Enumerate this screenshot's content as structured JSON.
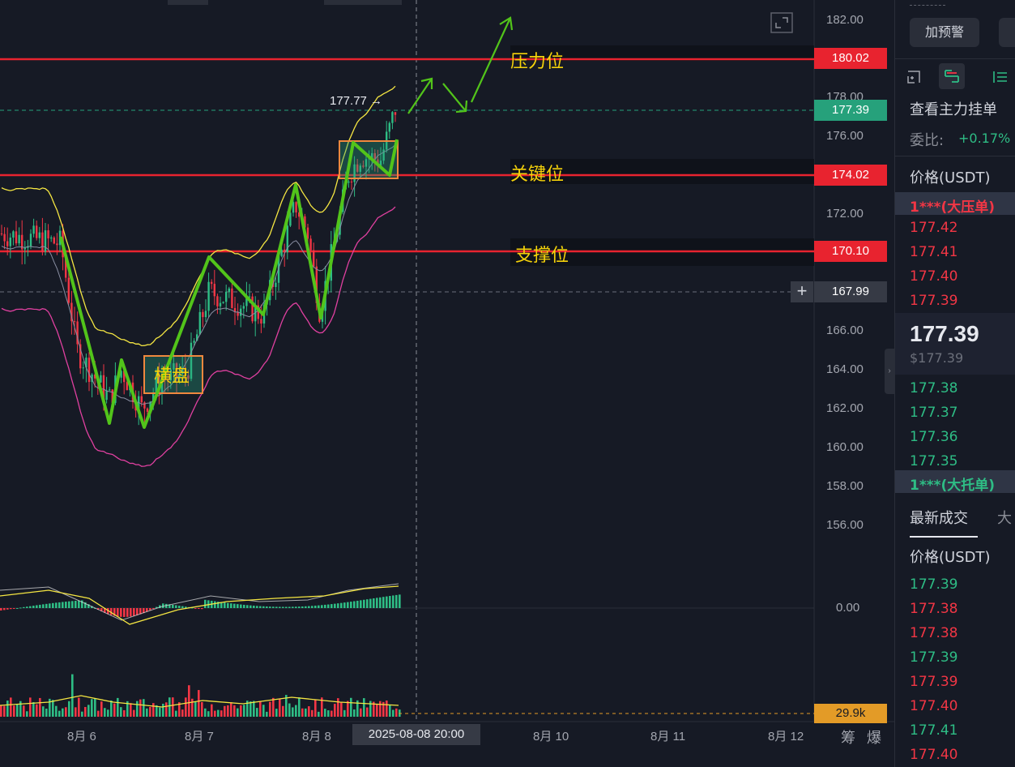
{
  "price_axis": {
    "labels": [
      "182.00",
      "178.00",
      "176.00",
      "172.00",
      "166.00",
      "164.00",
      "162.00",
      "160.00",
      "158.00",
      "156.00",
      "0.00"
    ]
  },
  "price_tags": {
    "pressure": "180.02",
    "current": "177.39",
    "key": "174.02",
    "support": "170.10",
    "crosshair": "167.99",
    "volume": "29.9k"
  },
  "high_marker": "177.77 →",
  "zones": {
    "pressure_label": "压力位",
    "key_label": "关键位",
    "support_label": "支撑位",
    "consolidation_label": "横盘"
  },
  "date_axis": {
    "labels": [
      "8月 6",
      "8月 7",
      "8月 8",
      "8月 10",
      "8月 11",
      "8月 12"
    ],
    "crosshair_time": "2025-08-08 20:00",
    "tools": [
      "筹",
      "爆"
    ]
  },
  "panel": {
    "alert_button": "加预警",
    "order_view_title": "查看主力挂单",
    "ratio_label": "委比:",
    "ratio_value": "+0.17%",
    "price_header": "价格(USDT)",
    "ask_big": "1***(大压单)",
    "asks": [
      "177.42",
      "177.41",
      "177.40",
      "177.39"
    ],
    "last_price": "177.39",
    "last_price_usd": "$177.39",
    "bids": [
      "177.38",
      "177.37",
      "177.36",
      "177.35"
    ],
    "bid_big": "1***(大托单)",
    "trades_tab": "最新成交",
    "trades_tab2": "大",
    "trades_header": "价格(USDT)",
    "trades": [
      {
        "p": "177.39",
        "side": "buy"
      },
      {
        "p": "177.38",
        "side": "sell"
      },
      {
        "p": "177.38",
        "side": "sell"
      },
      {
        "p": "177.39",
        "side": "buy"
      },
      {
        "p": "177.39",
        "side": "sell"
      },
      {
        "p": "177.40",
        "side": "sell"
      },
      {
        "p": "177.41",
        "side": "buy"
      },
      {
        "p": "177.40",
        "side": "sell"
      }
    ]
  },
  "colors": {
    "bg": "#161a25",
    "up": "#2ebd85",
    "down": "#f23645",
    "level_line": "#e8232f",
    "annotation": "#52c41a",
    "label_yellow": "#f5d20a",
    "box_orange": "#f0883e"
  }
}
